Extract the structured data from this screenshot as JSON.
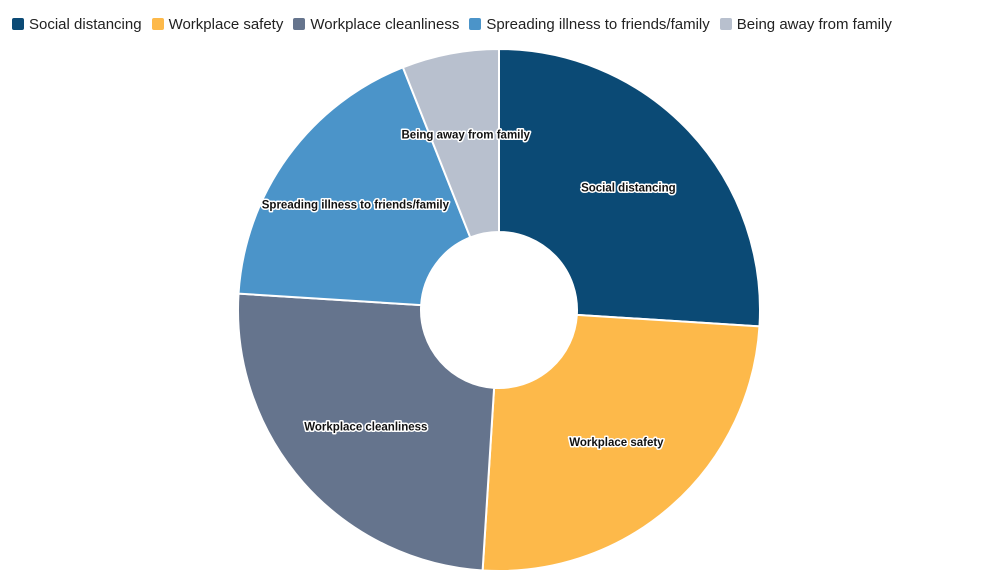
{
  "chart_data": {
    "type": "pie",
    "variant": "donut",
    "title": "",
    "legend_position": "top-left",
    "series": [
      {
        "name": "Social distancing",
        "value": 26,
        "color": "#0b4a75"
      },
      {
        "name": "Workplace safety",
        "value": 25,
        "color": "#fdb94a"
      },
      {
        "name": "Workplace cleanliness",
        "value": 25,
        "color": "#65748d"
      },
      {
        "name": "Spreading illness to friends/family",
        "value": 18,
        "color": "#4b94c9"
      },
      {
        "name": "Being away from family",
        "value": 6,
        "color": "#b8c0ce"
      }
    ]
  }
}
